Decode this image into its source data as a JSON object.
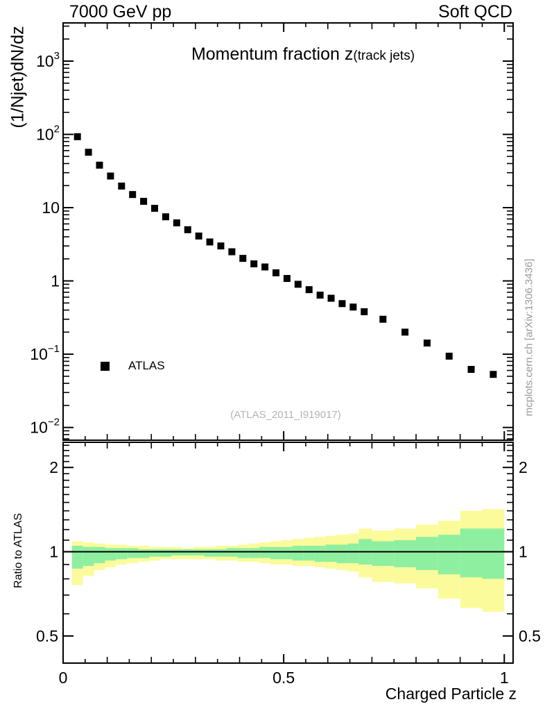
{
  "header": {
    "left": "7000 GeV pp",
    "right": "Soft QCD"
  },
  "main": {
    "title": "Momentum fraction z",
    "title_sub": "(track jets)",
    "ylabel": "(1/Njet)dN/dz",
    "legend": {
      "label": "ATLAS",
      "marker": "filled-square",
      "marker_color": "#000000"
    },
    "watermark": "(ATLAS_2011_I919017)"
  },
  "ratio": {
    "ylabel": "Ratio to ATLAS"
  },
  "xaxis": {
    "label": "Charged Particle z"
  },
  "side_text": "mcplots.cern.ch [arXiv:1306.3436]",
  "colors": {
    "band_outer": "#FBFB9B",
    "band_inner": "#8FEFA0",
    "axis": "#000000",
    "marker": "#000000",
    "watermark_text": "#B4B4B4",
    "side_text": "#999999"
  },
  "chart_data": [
    {
      "type": "scatter",
      "title": "Momentum fraction z(track jets)",
      "xlabel": "Charged Particle z",
      "ylabel": "(1/Njet)dN/dz",
      "yscale": "log",
      "grid": false,
      "xlim": [
        0,
        1.02
      ],
      "ylim": [
        0.0067,
        3320
      ],
      "legend_position": "left-middle",
      "legend": [
        {
          "label": "ATLAS",
          "marker": "filled-square",
          "color": "#000000"
        }
      ],
      "xtick_labels": [
        {
          "text": "0",
          "value": 0
        },
        {
          "text": "0.5",
          "value": 0.5
        },
        {
          "text": "1",
          "value": 1
        }
      ],
      "xtick_minor_step": 0.05,
      "ytick_labels": [
        {
          "text": "10",
          "exp": "3",
          "value": 1000
        },
        {
          "text": "10",
          "exp": "2",
          "value": 100
        },
        {
          "text": "10",
          "exp": "",
          "value": 10
        },
        {
          "text": "1",
          "exp": "",
          "value": 1
        },
        {
          "text": "10",
          "exp": "−1",
          "value": 0.1
        },
        {
          "text": "10",
          "exp": "−2",
          "value": 0.01
        }
      ],
      "series": [
        {
          "name": "ATLAS",
          "marker": "filled-square",
          "color": "#000000",
          "x": [
            0.0325,
            0.0575,
            0.0825,
            0.1075,
            0.1325,
            0.1575,
            0.1825,
            0.2075,
            0.2325,
            0.2575,
            0.2825,
            0.3075,
            0.3325,
            0.3575,
            0.3825,
            0.4075,
            0.4325,
            0.4575,
            0.4825,
            0.5075,
            0.5325,
            0.5575,
            0.5825,
            0.6075,
            0.6325,
            0.6575,
            0.6825,
            0.725,
            0.775,
            0.825,
            0.875,
            0.925,
            0.975
          ],
          "y": [
            93,
            57,
            38,
            27,
            19.7,
            15.1,
            12.2,
            9.8,
            7.5,
            6.2,
            5.0,
            4.1,
            3.4,
            3.0,
            2.5,
            2.03,
            1.71,
            1.55,
            1.29,
            1.08,
            0.9,
            0.76,
            0.64,
            0.58,
            0.49,
            0.44,
            0.38,
            0.3,
            0.2,
            0.142,
            0.094,
            0.062,
            0.053
          ]
        }
      ]
    },
    {
      "type": "area",
      "subtype": "ratio-uncertainty-bands",
      "ylabel": "Ratio to ATLAS",
      "yscale": "log",
      "xlim": [
        0,
        1.02
      ],
      "ylim": [
        0.4,
        2.46
      ],
      "reference_line": 1,
      "ytick_labels": [
        {
          "text": "2",
          "value": 2
        },
        {
          "text": "1",
          "value": 1
        },
        {
          "text": "0.5",
          "value": 0.5
        }
      ],
      "bands": {
        "outer_color": "#FBFB9B",
        "inner_color": "#8FEFA0",
        "bins_format": [
          "z_lo",
          "z_hi",
          "outer_lo",
          "inner_lo",
          "inner_hi",
          "outer_hi"
        ],
        "bins": [
          [
            0.02,
            0.045,
            0.76,
            0.87,
            1.05,
            1.09
          ],
          [
            0.045,
            0.07,
            0.82,
            0.89,
            1.04,
            1.08
          ],
          [
            0.07,
            0.095,
            0.86,
            0.91,
            1.04,
            1.07
          ],
          [
            0.095,
            0.12,
            0.88,
            0.93,
            1.03,
            1.06
          ],
          [
            0.12,
            0.145,
            0.9,
            0.94,
            1.03,
            1.06
          ],
          [
            0.145,
            0.17,
            0.91,
            0.95,
            1.03,
            1.05
          ],
          [
            0.17,
            0.195,
            0.92,
            0.95,
            1.02,
            1.05
          ],
          [
            0.195,
            0.22,
            0.93,
            0.96,
            1.02,
            1.04
          ],
          [
            0.22,
            0.245,
            0.94,
            0.96,
            1.02,
            1.04
          ],
          [
            0.245,
            0.27,
            0.94,
            0.97,
            1.02,
            1.04
          ],
          [
            0.27,
            0.295,
            0.94,
            0.97,
            1.02,
            1.03
          ],
          [
            0.295,
            0.32,
            0.94,
            0.97,
            1.02,
            1.04
          ],
          [
            0.32,
            0.345,
            0.94,
            0.96,
            1.02,
            1.04
          ],
          [
            0.345,
            0.37,
            0.93,
            0.96,
            1.02,
            1.05
          ],
          [
            0.37,
            0.395,
            0.93,
            0.96,
            1.03,
            1.05
          ],
          [
            0.395,
            0.42,
            0.92,
            0.95,
            1.03,
            1.06
          ],
          [
            0.42,
            0.445,
            0.92,
            0.95,
            1.03,
            1.07
          ],
          [
            0.445,
            0.47,
            0.91,
            0.95,
            1.04,
            1.08
          ],
          [
            0.47,
            0.495,
            0.9,
            0.94,
            1.04,
            1.09
          ],
          [
            0.495,
            0.52,
            0.9,
            0.94,
            1.04,
            1.1
          ],
          [
            0.52,
            0.545,
            0.89,
            0.93,
            1.05,
            1.11
          ],
          [
            0.545,
            0.57,
            0.89,
            0.93,
            1.05,
            1.12
          ],
          [
            0.57,
            0.595,
            0.88,
            0.92,
            1.05,
            1.13
          ],
          [
            0.595,
            0.62,
            0.87,
            0.92,
            1.06,
            1.14
          ],
          [
            0.62,
            0.645,
            0.86,
            0.91,
            1.06,
            1.15
          ],
          [
            0.645,
            0.67,
            0.85,
            0.91,
            1.07,
            1.16
          ],
          [
            0.67,
            0.7,
            0.81,
            0.9,
            1.11,
            1.21
          ],
          [
            0.7,
            0.75,
            0.78,
            0.89,
            1.09,
            1.19
          ],
          [
            0.75,
            0.8,
            0.77,
            0.88,
            1.1,
            1.21
          ],
          [
            0.8,
            0.85,
            0.74,
            0.86,
            1.13,
            1.25
          ],
          [
            0.85,
            0.9,
            0.68,
            0.83,
            1.15,
            1.29
          ],
          [
            0.9,
            0.95,
            0.63,
            0.81,
            1.21,
            1.4
          ],
          [
            0.95,
            1.0,
            0.61,
            0.8,
            1.21,
            1.42
          ]
        ]
      }
    }
  ]
}
